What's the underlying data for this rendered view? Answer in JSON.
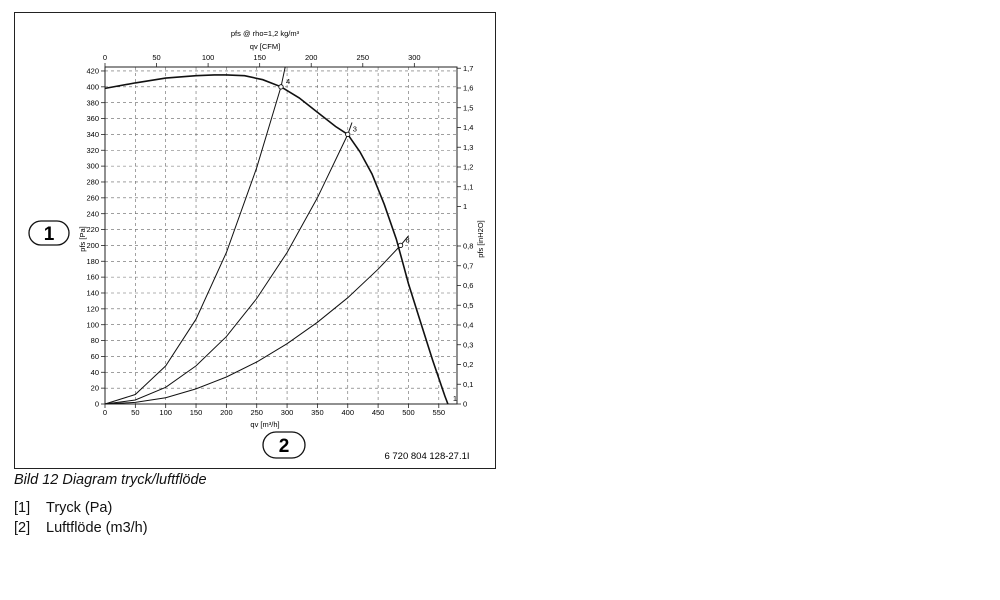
{
  "figure": {
    "caption": "Bild 12  Diagram tryck/luftflöde",
    "image_code": "6 720 804 128-27.1I",
    "markers": {
      "y_axis": "1",
      "x_axis": "2"
    }
  },
  "legend": [
    {
      "key": "[1]",
      "text": "Tryck (Pa)"
    },
    {
      "key": "[2]",
      "text": "Luftflöde (m3/h)"
    }
  ],
  "chart_data": {
    "type": "line",
    "title": "pfs @ rho=1,2 kg/m³",
    "xlabel": "qv [m³/h]",
    "ylabel": "pfs [Pa]",
    "xlim": [
      0,
      580
    ],
    "ylim": [
      0,
      425
    ],
    "x_ticks": [
      0,
      50,
      100,
      150,
      200,
      250,
      300,
      350,
      400,
      450,
      500,
      550
    ],
    "y_ticks": [
      0,
      20,
      40,
      60,
      80,
      100,
      120,
      140,
      160,
      180,
      200,
      220,
      240,
      260,
      280,
      300,
      320,
      340,
      360,
      380,
      400,
      420
    ],
    "top_axis": {
      "label": "qv [CFM]",
      "ticks": [
        0,
        50,
        100,
        150,
        200,
        250,
        300
      ]
    },
    "right_axis": {
      "label": "pfs [inH2O]",
      "ticks": [
        "0",
        "0,1",
        "0,2",
        "0,3",
        "0,4",
        "0,5",
        "0,6",
        "0,7",
        "0,8",
        "1",
        "1,1",
        "1,2",
        "1,3",
        "1,4",
        "1,5",
        "1,6",
        "1,7"
      ]
    },
    "grid": true,
    "series": [
      {
        "x": [
          0,
          50,
          100,
          150,
          180,
          200,
          230,
          260,
          290,
          320,
          350,
          380,
          400,
          420,
          440,
          460,
          480,
          490,
          500,
          520,
          540,
          560,
          565
        ],
        "y": [
          398,
          405,
          411,
          414,
          415,
          415,
          414,
          409,
          400,
          386,
          368,
          350,
          340,
          318,
          290,
          252,
          208,
          180,
          152,
          103,
          55,
          10,
          0
        ]
      },
      {
        "x": [
          0,
          50,
          100,
          150,
          200,
          250,
          290,
          297
        ],
        "y": [
          0,
          12,
          48,
          107,
          191,
          298,
          400,
          425
        ]
      },
      {
        "x": [
          0,
          50,
          100,
          150,
          200,
          250,
          300,
          350,
          400,
          407
        ],
        "y": [
          0,
          5,
          21,
          48,
          85,
          133,
          191,
          260,
          340,
          355
        ]
      },
      {
        "x": [
          0,
          50,
          100,
          150,
          200,
          250,
          300,
          350,
          400,
          450,
          487,
          500
        ],
        "y": [
          0,
          2,
          8,
          19,
          34,
          53,
          76,
          103,
          134,
          170,
          200,
          212
        ]
      }
    ],
    "point_labels": [
      {
        "text": "1",
        "x": 565,
        "y": 0
      },
      {
        "text": "3",
        "x": 400,
        "y": 340
      },
      {
        "text": "4",
        "x": 290,
        "y": 400
      },
      {
        "text": "8",
        "x": 487,
        "y": 200
      }
    ]
  }
}
